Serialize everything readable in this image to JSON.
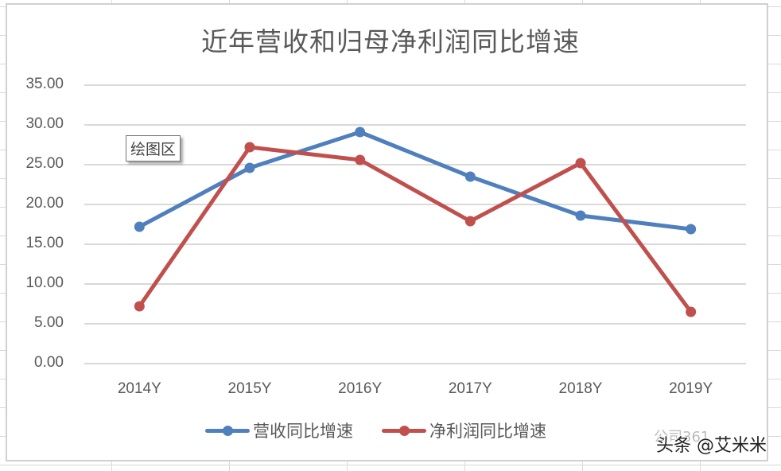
{
  "chart": {
    "title": "近年营收和归母净利润同比增速",
    "tooltip": "绘图区",
    "y_ticks": [
      "35.00",
      "30.00",
      "25.00",
      "20.00",
      "15.00",
      "10.00",
      "5.00",
      "0.00"
    ],
    "x_ticks": [
      "2014Y",
      "2015Y",
      "2016Y",
      "2017Y",
      "2018Y",
      "2019Y"
    ],
    "legend": [
      {
        "label": "营收同比增速",
        "color": "#4f7fbd"
      },
      {
        "label": "净利润同比增速",
        "color": "#c0504d"
      }
    ]
  },
  "watermark": {
    "text": "头条 @艾米米",
    "faint_text": "公司361"
  },
  "chart_data": {
    "type": "line",
    "title": "近年营收和归母净利润同比增速",
    "xlabel": "",
    "ylabel": "",
    "categories": [
      "2014Y",
      "2015Y",
      "2016Y",
      "2017Y",
      "2018Y",
      "2019Y"
    ],
    "series": [
      {
        "name": "营收同比增速",
        "color": "#4f7fbd",
        "values": [
          17.2,
          24.6,
          29.1,
          23.5,
          18.6,
          16.9
        ]
      },
      {
        "name": "净利润同比增速",
        "color": "#c0504d",
        "values": [
          7.2,
          27.2,
          25.6,
          17.9,
          25.2,
          6.5
        ]
      }
    ],
    "ylim": [
      0,
      35
    ],
    "ytick_step": 5,
    "grid": true,
    "legend_position": "bottom"
  }
}
